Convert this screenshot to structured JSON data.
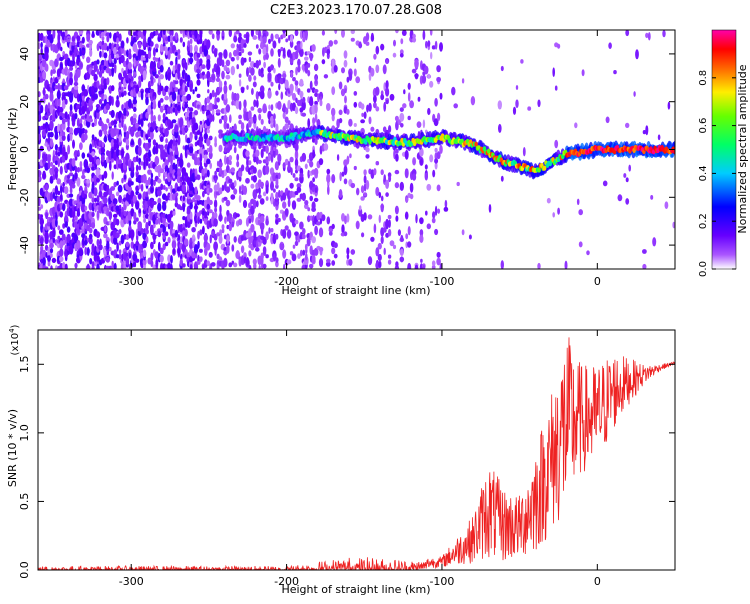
{
  "figure": {
    "title": "C2E3.2023.170.07.28.G08"
  },
  "colors": {
    "snr_line": "#ee2222",
    "axis": "#000000",
    "colormap": [
      "#ffffff",
      "#7700ff",
      "#0000ff",
      "#00ffff",
      "#00ff00",
      "#ffff00",
      "#ff8800",
      "#ff0000",
      "#ff00aa"
    ]
  },
  "chart_data": [
    {
      "type": "heatmap",
      "title": "C2E3.2023.170.07.28.G08",
      "xlabel": "Height of straight line (km)",
      "ylabel": "Frequency (Hz)",
      "xlim": [
        -360,
        50
      ],
      "ylim": [
        -50,
        50
      ],
      "x_ticks": [
        -300,
        -200,
        -100,
        0
      ],
      "y_ticks": [
        40,
        20,
        0,
        -20,
        -40
      ],
      "colorbar": {
        "label": "Normalized spectral amplitude",
        "range": [
          0,
          1
        ],
        "ticks": [
          "0.0",
          "0.2",
          "0.4",
          "0.6",
          "0.8"
        ]
      },
      "signal_band": [
        {
          "x": -240,
          "f": 5
        },
        {
          "x": -200,
          "f": 5
        },
        {
          "x": -180,
          "f": 7
        },
        {
          "x": -150,
          "f": 4
        },
        {
          "x": -120,
          "f": 3
        },
        {
          "x": -100,
          "f": 5
        },
        {
          "x": -80,
          "f": 2
        },
        {
          "x": -60,
          "f": -5
        },
        {
          "x": -40,
          "f": -9
        },
        {
          "x": -20,
          "f": -2
        },
        {
          "x": 0,
          "f": 0
        },
        {
          "x": 50,
          "f": 0
        }
      ],
      "grid": false
    },
    {
      "type": "line",
      "xlabel": "Height of straight line (km)",
      "ylabel": "SNR (10 * v/v)",
      "scale_label": "(x10",
      "scale_exponent": "4",
      "scale_close": ")",
      "xlim": [
        -360,
        50
      ],
      "ylim": [
        0,
        1.75
      ],
      "x_ticks": [
        -300,
        -200,
        -100,
        0
      ],
      "y_ticks": [
        "0.0",
        "0.5",
        "1.0",
        "1.5"
      ],
      "envelope": {
        "x": [
          -360,
          -200,
          -160,
          -120,
          -100,
          -80,
          -70,
          -60,
          -50,
          -40,
          -30,
          -20,
          -10,
          0,
          10,
          20,
          30,
          40,
          50
        ],
        "lo": [
          0.0,
          0.0,
          0.0,
          0.0,
          0.02,
          0.05,
          0.08,
          0.05,
          0.08,
          0.12,
          0.25,
          0.4,
          0.7,
          0.75,
          1.0,
          1.2,
          1.35,
          1.45,
          1.5
        ],
        "hi": [
          0.03,
          0.03,
          0.1,
          0.08,
          0.1,
          0.4,
          0.8,
          0.6,
          0.55,
          0.9,
          1.3,
          1.75,
          1.5,
          1.5,
          1.6,
          1.55,
          1.5,
          1.5,
          1.52
        ]
      },
      "grid": false
    }
  ]
}
